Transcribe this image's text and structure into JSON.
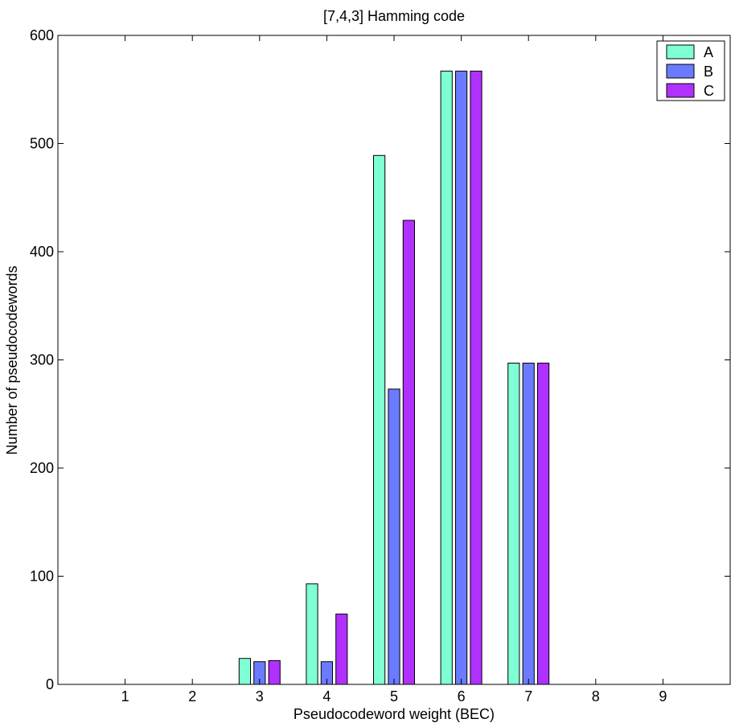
{
  "chart_data": {
    "type": "bar",
    "title": "[7,4,3] Hamming code",
    "xlabel": "Pseudocodeword weight (BEC)",
    "ylabel": "Number of pseudocodewords",
    "categories": [
      "1",
      "2",
      "3",
      "4",
      "5",
      "6",
      "7",
      "8",
      "9"
    ],
    "xlim": [
      0,
      10
    ],
    "ylim": [
      0,
      600
    ],
    "yticks": [
      0,
      100,
      200,
      300,
      400,
      500,
      600
    ],
    "series": [
      {
        "name": "A",
        "color": "#7fffd4",
        "values": [
          0,
          0,
          24,
          93,
          489,
          567,
          297,
          0,
          0
        ]
      },
      {
        "name": "B",
        "color": "#6b7bff",
        "values": [
          0,
          0,
          21,
          21,
          273,
          567,
          297,
          0,
          0
        ]
      },
      {
        "name": "C",
        "color": "#b030ff",
        "values": [
          0,
          0,
          22,
          65,
          429,
          567,
          297,
          0,
          0
        ]
      }
    ],
    "legend_position": "top-right",
    "grid": false
  }
}
